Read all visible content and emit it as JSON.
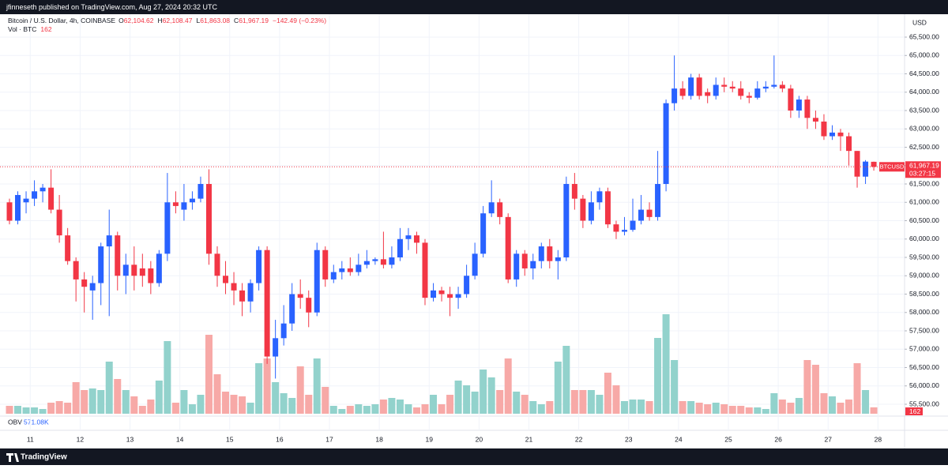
{
  "chart_data": {
    "type": "candlestick",
    "publisher": "jfinneseth published on TradingView.com, Aug 27, 2024 20:32 UTC",
    "title": "Bitcoin / U.S. Dollar, 4h, COINBASE",
    "ohlc": [
      {
        "key": "O",
        "value": "62,104.62"
      },
      {
        "key": "H",
        "value": "62,108.47"
      },
      {
        "key": "L",
        "value": "61,863.08"
      },
      {
        "key": "C",
        "value": "61,967.19"
      }
    ],
    "change": "−142.49 (−0.23%)",
    "volume_label": "Vol · BTC",
    "currency": "USD",
    "symbol": "BTCUSD",
    "last_price": "61,967.19",
    "countdown": "03:27:15",
    "obv_label": "OBV",
    "obv_value": "571.08K",
    "brand": "TradingView",
    "up_color": "#2962ff",
    "down_color": "#f23645",
    "volume_up_color": "#92d2cc",
    "volume_down_color": "#f7a9a7",
    "grid": true,
    "ylim": [
      55242,
      66124
    ],
    "yticks": [
      {
        "value": 55500,
        "label": "55,500.00"
      },
      {
        "value": 56000,
        "label": "56,000.00"
      },
      {
        "value": 56500,
        "label": "56,500.00"
      },
      {
        "value": 57000,
        "label": "57,000.00"
      },
      {
        "value": 57500,
        "label": "57,500.00"
      },
      {
        "value": 58000,
        "label": "58,000.00"
      },
      {
        "value": 58500,
        "label": "58,500.00"
      },
      {
        "value": 59000,
        "label": "59,000.00"
      },
      {
        "value": 59500,
        "label": "59,500.00"
      },
      {
        "value": 60000,
        "label": "60,000.00"
      },
      {
        "value": 60500,
        "label": "60,500.00"
      },
      {
        "value": 61000,
        "label": "61,000.00"
      },
      {
        "value": 61500,
        "label": "61,500.00"
      },
      {
        "value": 62000,
        "label": "62,000.00"
      },
      {
        "value": 62500,
        "label": "62,500.00"
      },
      {
        "value": 63000,
        "label": "63,000.00"
      },
      {
        "value": 63500,
        "label": "63,500.00"
      },
      {
        "value": 64000,
        "label": "64,000.00"
      },
      {
        "value": 64500,
        "label": "64,500.00"
      },
      {
        "value": 65000,
        "label": "65,000.00"
      },
      {
        "value": 65500,
        "label": "65,500.00"
      }
    ],
    "date_labels": [
      "11",
      "12",
      "13",
      "14",
      "15",
      "16",
      "17",
      "18",
      "19",
      "20",
      "21",
      "22",
      "23",
      "24",
      "25",
      "26",
      "27",
      "28"
    ],
    "open": [
      61000,
      60500,
      61000,
      61100,
      61300,
      61400,
      60800,
      60100,
      59400,
      58900,
      58600,
      58800,
      59800,
      60100,
      59000,
      59300,
      59200,
      59200,
      58800,
      59600,
      61000,
      60800,
      61000,
      61100,
      61500,
      59600,
      59000,
      58800,
      58600,
      58300,
      58800,
      59700,
      56800,
      57300,
      57700,
      58500,
      58400,
      58000,
      59700,
      58900,
      59100,
      59200,
      59100,
      59300,
      59400,
      59450,
      59300,
      59500,
      60000,
      60100,
      59900,
      58400,
      58600,
      58500,
      58400,
      58500,
      59000,
      59600,
      60700,
      61000,
      60600,
      58900,
      59600,
      59200,
      59400,
      59800,
      59400,
      59500,
      61500,
      61100,
      60500,
      61000,
      61300,
      60400,
      60200,
      60250,
      60500,
      60800,
      60600,
      61500,
      63700,
      64100,
      63900,
      64400,
      64000,
      63900,
      64200,
      64150,
      64100,
      63900,
      63850,
      64100,
      64150,
      64200,
      64100,
      63500,
      63800,
      63300,
      63200,
      62800,
      62900,
      62800,
      62400,
      61700,
      62104.62
    ],
    "high": [
      61100,
      61300,
      61300,
      61600,
      61500,
      61900,
      61200,
      60300,
      59500,
      59100,
      59000,
      59900,
      60800,
      60200,
      59600,
      59800,
      59600,
      59400,
      59700,
      61800,
      61300,
      61500,
      61300,
      61700,
      61900,
      59800,
      59400,
      59100,
      58800,
      58900,
      59800,
      59800,
      57800,
      58200,
      58800,
      58900,
      58600,
      59900,
      59800,
      59300,
      59400,
      59500,
      59600,
      59700,
      59500,
      60200,
      59800,
      60300,
      60300,
      60200,
      60000,
      58800,
      58700,
      58700,
      58700,
      59300,
      59900,
      60900,
      61600,
      61100,
      60700,
      59700,
      59700,
      59600,
      59900,
      60000,
      59700,
      61700,
      61800,
      61200,
      61300,
      61400,
      61400,
      60500,
      60600,
      61100,
      61200,
      61000,
      62400,
      63800,
      65000,
      64300,
      64500,
      64500,
      64100,
      64400,
      64400,
      64300,
      64300,
      64000,
      64300,
      64300,
      65000,
      64300,
      64200,
      63900,
      63900,
      63500,
      63400,
      63100,
      63000,
      62900,
      62400,
      62150,
      62108.47
    ],
    "low": [
      60400,
      60400,
      60700,
      60900,
      61000,
      60700,
      59900,
      59300,
      58300,
      58000,
      57800,
      58200,
      57900,
      58600,
      58500,
      58600,
      58700,
      58500,
      58700,
      59400,
      60700,
      60500,
      60800,
      61000,
      59300,
      58700,
      58500,
      58200,
      57900,
      58000,
      58600,
      56600,
      56200,
      57100,
      57500,
      58100,
      57600,
      57900,
      58700,
      58800,
      58900,
      59000,
      59000,
      59200,
      59300,
      59200,
      59200,
      59400,
      59700,
      59600,
      58200,
      58300,
      58300,
      57900,
      58100,
      58400,
      58900,
      59500,
      60600,
      60400,
      58800,
      58700,
      59000,
      58900,
      59200,
      59200,
      58900,
      59400,
      60800,
      60300,
      60400,
      60800,
      60300,
      60000,
      60100,
      60200,
      60400,
      60500,
      60500,
      61300,
      63500,
      63800,
      63800,
      63800,
      63700,
      63800,
      64000,
      64000,
      63800,
      63700,
      63800,
      64000,
      64100,
      64000,
      63300,
      63300,
      63000,
      63000,
      62700,
      62700,
      62400,
      62000,
      61400,
      61500,
      61863.08
    ],
    "close": [
      60500,
      61200,
      61100,
      61300,
      61400,
      60800,
      60100,
      59400,
      58900,
      58700,
      58800,
      59800,
      60100,
      59000,
      59300,
      59000,
      59000,
      58800,
      59600,
      61000,
      60900,
      61000,
      61100,
      61500,
      59600,
      59000,
      58800,
      58600,
      58300,
      58800,
      59700,
      56800,
      57300,
      57700,
      58500,
      58400,
      58000,
      59700,
      58900,
      59100,
      59200,
      59100,
      59300,
      59400,
      59450,
      59300,
      59500,
      60000,
      60100,
      59900,
      58400,
      58600,
      58500,
      58400,
      58500,
      59000,
      59600,
      60700,
      61000,
      60600,
      58900,
      59600,
      59200,
      59400,
      59800,
      59400,
      59500,
      61500,
      61100,
      60500,
      61000,
      61300,
      60400,
      60200,
      60250,
      60500,
      60800,
      60600,
      61500,
      63700,
      64100,
      63900,
      64400,
      63900,
      63900,
      64200,
      64150,
      64100,
      63900,
      63850,
      64100,
      64150,
      64200,
      64100,
      63500,
      63800,
      63300,
      63200,
      62800,
      62900,
      62800,
      62400,
      61700,
      62109.68,
      61967.19
    ],
    "volume": [
      200,
      200,
      160,
      160,
      120,
      280,
      320,
      280,
      800,
      600,
      640,
      600,
      1320,
      880,
      600,
      440,
      200,
      360,
      840,
      1840,
      280,
      600,
      240,
      480,
      2000,
      1000,
      560,
      480,
      440,
      280,
      1280,
      1400,
      800,
      520,
      400,
      1200,
      480,
      1400,
      680,
      200,
      120,
      200,
      240,
      200,
      240,
      360,
      400,
      360,
      240,
      160,
      240,
      480,
      240,
      480,
      840,
      720,
      560,
      1120,
      920,
      600,
      1400,
      560,
      480,
      320,
      240,
      320,
      1320,
      1720,
      600,
      600,
      600,
      480,
      1040,
      720,
      320,
      360,
      360,
      320,
      1920,
      2520,
      1360,
      320,
      320,
      280,
      240,
      280,
      240,
      200,
      200,
      160,
      160,
      120,
      520,
      360,
      280,
      400,
      1360,
      1240,
      520,
      440,
      280,
      360,
      1280,
      600,
      162
    ]
  }
}
